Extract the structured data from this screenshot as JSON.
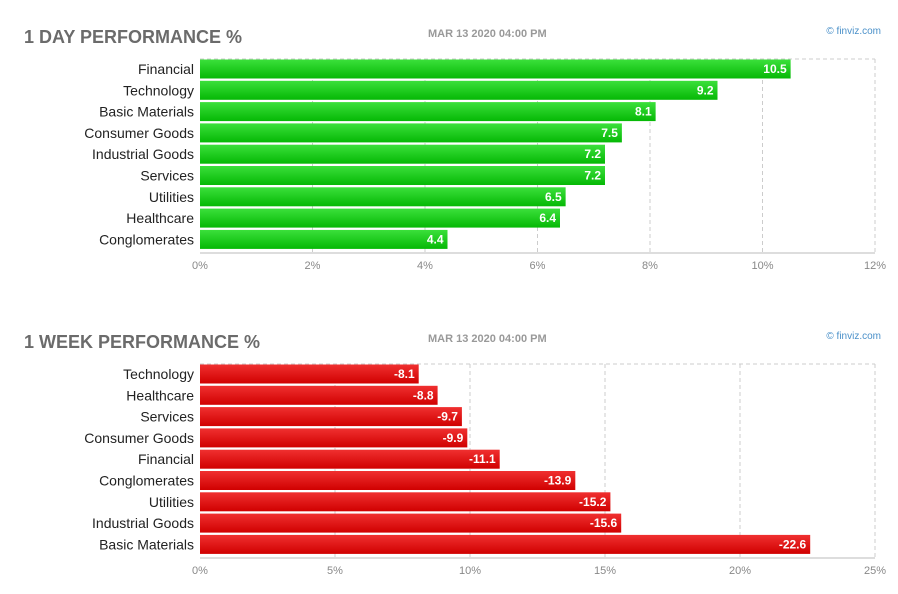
{
  "colors": {
    "green_top": "#3be03b",
    "green_bottom": "#05b805",
    "red_top": "#f03030",
    "red_bottom": "#d00000",
    "grid": "#cccccc",
    "title": "#6b6b6b"
  },
  "icons": {
    "credit": "copyright-icon"
  },
  "chart_data": [
    {
      "type": "bar",
      "orientation": "horizontal",
      "title": "1 DAY PERFORMANCE %",
      "timestamp": "MAR 13 2020 04:00 PM",
      "credit": "© finviz.com",
      "categories": [
        "Financial",
        "Technology",
        "Basic Materials",
        "Consumer Goods",
        "Industrial Goods",
        "Services",
        "Utilities",
        "Healthcare",
        "Conglomerates"
      ],
      "values": [
        10.5,
        9.2,
        8.1,
        7.5,
        7.2,
        7.2,
        6.5,
        6.4,
        4.4
      ],
      "value_labels": [
        "10.5",
        "9.2",
        "8.1",
        "7.5",
        "7.2",
        "7.2",
        "6.5",
        "6.4",
        "4.4"
      ],
      "xlim": [
        0,
        12
      ],
      "ticks": [
        0,
        2,
        4,
        6,
        8,
        10,
        12
      ],
      "tick_labels": [
        "0%",
        "2%",
        "4%",
        "6%",
        "8%",
        "10%",
        "12%"
      ],
      "grid": true,
      "color": "green"
    },
    {
      "type": "bar",
      "orientation": "horizontal",
      "title": "1 WEEK PERFORMANCE %",
      "timestamp": "MAR 13 2020 04:00 PM",
      "credit": "© finviz.com",
      "categories": [
        "Technology",
        "Healthcare",
        "Services",
        "Consumer Goods",
        "Financial",
        "Conglomerates",
        "Utilities",
        "Industrial Goods",
        "Basic Materials"
      ],
      "values": [
        -8.1,
        -8.8,
        -9.7,
        -9.9,
        -11.1,
        -13.9,
        -15.2,
        -15.6,
        -22.6
      ],
      "value_labels": [
        "-8.1",
        "-8.8",
        "-9.7",
        "-9.9",
        "-11.1",
        "-13.9",
        "-15.2",
        "-15.6",
        "-22.6"
      ],
      "xlim": [
        0,
        25
      ],
      "ticks": [
        0,
        5,
        10,
        15,
        20,
        25
      ],
      "tick_labels": [
        "0%",
        "5%",
        "10%",
        "15%",
        "20%",
        "25%"
      ],
      "grid": true,
      "color": "red"
    }
  ]
}
